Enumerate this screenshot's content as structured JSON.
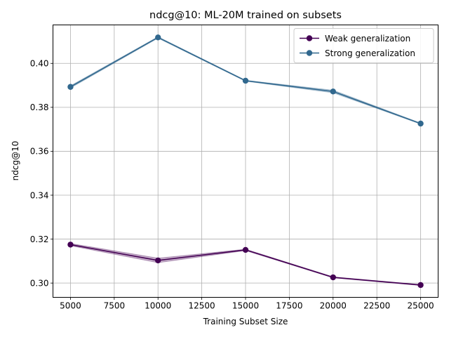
{
  "chart_data": {
    "type": "line",
    "title": "ndcg@10: ML-20M trained on subsets",
    "xlabel": "Training Subset Size",
    "ylabel": "ndcg@10",
    "x": [
      5000,
      10000,
      15000,
      20000,
      25000
    ],
    "xlim": [
      4000,
      26000
    ],
    "ylim": [
      0.2935,
      0.4175
    ],
    "xticks": [
      5000,
      7500,
      10000,
      12500,
      15000,
      17500,
      20000,
      22500,
      25000
    ],
    "yticks": [
      0.3,
      0.32,
      0.34,
      0.36,
      0.38,
      0.4
    ],
    "grid": true,
    "legend_position": "top-right",
    "series": [
      {
        "name": "Weak generalization",
        "color": "#440154",
        "values": [
          0.3175,
          0.3103,
          0.3151,
          0.3026,
          0.2991
        ],
        "band_lower": [
          0.317,
          0.3093,
          0.3148,
          0.3024,
          0.2989
        ],
        "band_upper": [
          0.318,
          0.3113,
          0.3154,
          0.3028,
          0.2993
        ]
      },
      {
        "name": "Strong generalization",
        "color": "#31688e",
        "values": [
          0.3893,
          0.4118,
          0.3921,
          0.3872,
          0.3726
        ],
        "band_lower": [
          0.3888,
          0.4115,
          0.3919,
          0.3866,
          0.3724
        ],
        "band_upper": [
          0.3898,
          0.4121,
          0.3923,
          0.3878,
          0.3728
        ]
      }
    ]
  }
}
